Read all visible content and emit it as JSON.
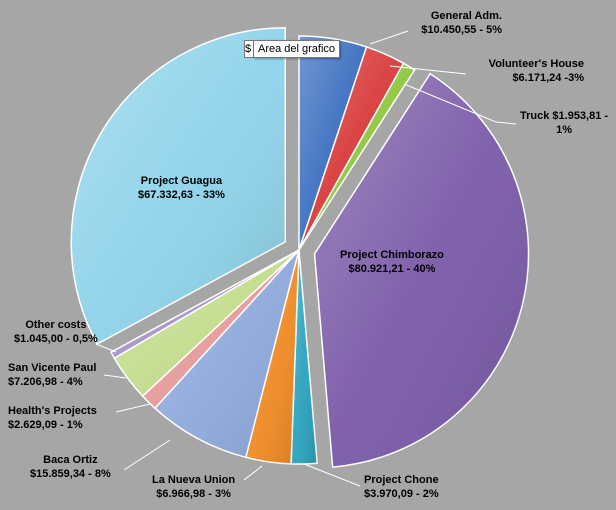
{
  "tooltip": {
    "stub": "$",
    "text": "Area del grafico"
  },
  "chart_data": {
    "type": "pie",
    "title": "",
    "start_angle_deg": 0,
    "slices": [
      {
        "name": "General Adm.",
        "value": 10450.55,
        "label_line1": "General Adm.",
        "label_line2": "$10.450,55 - 5%",
        "color": "#3b6fc0",
        "explode": 0
      },
      {
        "name": "Volunteer's House",
        "value": 6171.24,
        "label_line1": "Volunteer's House",
        "label_line2": "$6.171,24 -3%",
        "color": "#d83a3a",
        "explode": 0
      },
      {
        "name": "Truck",
        "value": 1953.81,
        "label_line1": "Truck $1.953,81 -",
        "label_line2": "1%",
        "color": "#8ec63f",
        "explode": 0
      },
      {
        "name": "Project Chimborazo",
        "value": 80921.21,
        "label_line1": "Project Chimborazo",
        "label_line2": "$80.921,21 - 40%",
        "color": "#7a5aa8",
        "explode": 1
      },
      {
        "name": "Project Chone",
        "value": 3970.09,
        "label_line1": "Project Chone",
        "label_line2": "$3.970,09 - 2%",
        "color": "#2aa3bd",
        "explode": 0
      },
      {
        "name": "La Nueva Union",
        "value": 6966.98,
        "label_line1": "La Nueva Union",
        "label_line2": "$6.966,98 - 3%",
        "color": "#f08a24",
        "explode": 0
      },
      {
        "name": "Baca Ortiz",
        "value": 15859.34,
        "label_line1": "Baca Ortiz",
        "label_line2": "$15.859,34 - 8%",
        "color": "#8ea9dc",
        "explode": 0
      },
      {
        "name": "Health's Projects",
        "value": 2629.09,
        "label_line1": "Health's Projects",
        "label_line2": "$2.629,09 - 1%",
        "color": "#e69a9a",
        "explode": 0
      },
      {
        "name": "San Vicente Paul",
        "value": 7206.98,
        "label_line1": "San Vicente Paul",
        "label_line2": "$7.206,98 - 4%",
        "color": "#c3dc8d",
        "explode": 0
      },
      {
        "name": "Other costs",
        "value": 1045.0,
        "label_line1": "Other costs",
        "label_line2": "$1.045,00 - 0,5%",
        "color": "#a894c8",
        "explode": 0
      },
      {
        "name": "Project Guagua",
        "value": 67332.63,
        "label_line1": "Project Guagua",
        "label_line2": "$67.332,63 - 33%",
        "color": "#8fd3ea",
        "explode": 1
      }
    ]
  }
}
